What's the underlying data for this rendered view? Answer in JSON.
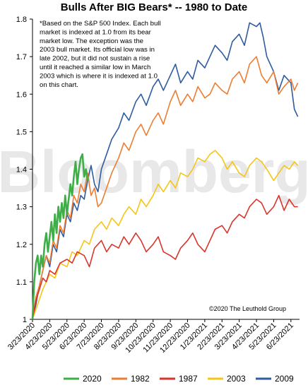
{
  "chart_data": {
    "type": "line",
    "title": "Bulls After BIG Bears* -- 1980 to Date",
    "xlabel": "",
    "ylabel": "",
    "ylim": [
      1,
      1.8
    ],
    "yticks": [
      "1",
      "1.1",
      "1.2",
      "1.3",
      "1.4",
      "1.5",
      "1.6",
      "1.7",
      "1.8"
    ],
    "xticks": [
      "3/23/2020",
      "4/23/2020",
      "5/23/2020",
      "6/23/2020",
      "7/23/2020",
      "8/23/2020",
      "9/23/2020",
      "10/23/2020",
      "11/23/2020",
      "12/23/2020",
      "1/23/2021",
      "2/23/2021",
      "3/23/2021",
      "4/23/2021",
      "5/23/2021",
      "6/23/2021"
    ],
    "xlim": [
      0,
      15.5
    ],
    "grid": false,
    "legend_position": "bottom",
    "watermark": "Bloomberg",
    "note": [
      "*Based on the S&P 500 Index. Each bull",
      "market is indexed at 1.0 from its bear",
      "market low. The exception was the",
      "2003 bull market. Its official low was in",
      "late 2002, but it did not sustain a rise",
      "until it reached a similar low in March",
      "2003 which is where it is indexed at 1.0",
      "on this chart."
    ],
    "credit": "©2020 The Leuthold Group",
    "series": [
      {
        "name": "2020",
        "color": "#3fae49",
        "x": [
          0,
          0.1,
          0.2,
          0.3,
          0.4,
          0.5,
          0.6,
          0.7,
          0.8,
          0.9,
          1.0,
          1.1,
          1.2,
          1.3,
          1.4,
          1.5,
          1.6,
          1.7,
          1.8,
          1.9,
          2.0,
          2.1,
          2.2,
          2.3,
          2.4,
          2.5,
          2.6,
          2.7,
          2.8,
          2.9,
          3.0,
          3.1,
          3.2
        ],
        "values": [
          1.0,
          1.1,
          1.15,
          1.17,
          1.12,
          1.17,
          1.14,
          1.2,
          1.23,
          1.18,
          1.22,
          1.26,
          1.21,
          1.28,
          1.23,
          1.3,
          1.26,
          1.31,
          1.27,
          1.33,
          1.28,
          1.32,
          1.36,
          1.33,
          1.38,
          1.42,
          1.36,
          1.4,
          1.43,
          1.44,
          1.38,
          1.4,
          1.37
        ]
      },
      {
        "name": "1982",
        "color": "#ed7d31",
        "x": [
          0,
          0.2,
          0.4,
          0.6,
          0.8,
          1.0,
          1.2,
          1.4,
          1.6,
          1.8,
          2.0,
          2.2,
          2.4,
          2.6,
          2.8,
          3.0,
          3.2,
          3.4,
          3.6,
          3.8,
          4.0,
          4.3,
          4.6,
          5.0,
          5.3,
          5.6,
          6.0,
          6.3,
          6.6,
          7.0,
          7.3,
          7.6,
          8.0,
          8.3,
          8.6,
          9.0,
          9.3,
          9.6,
          10.0,
          10.3,
          10.6,
          11.0,
          11.3,
          11.6,
          12.0,
          12.3,
          12.6,
          13.0,
          13.3,
          13.6,
          14.0,
          14.3,
          14.6,
          15.0,
          15.2,
          15.4
        ],
        "values": [
          1.0,
          1.06,
          1.09,
          1.13,
          1.17,
          1.15,
          1.21,
          1.19,
          1.25,
          1.23,
          1.29,
          1.27,
          1.33,
          1.31,
          1.36,
          1.34,
          1.39,
          1.33,
          1.35,
          1.3,
          1.31,
          1.35,
          1.39,
          1.43,
          1.47,
          1.45,
          1.5,
          1.52,
          1.49,
          1.53,
          1.55,
          1.52,
          1.58,
          1.61,
          1.57,
          1.6,
          1.58,
          1.62,
          1.59,
          1.6,
          1.63,
          1.61,
          1.6,
          1.64,
          1.66,
          1.63,
          1.68,
          1.7,
          1.65,
          1.63,
          1.66,
          1.6,
          1.62,
          1.64,
          1.61,
          1.63
        ]
      },
      {
        "name": "1987",
        "color": "#d9342b",
        "x": [
          0,
          0.2,
          0.4,
          0.6,
          0.8,
          1.0,
          1.3,
          1.6,
          2.0,
          2.3,
          2.6,
          3.0,
          3.3,
          3.6,
          4.0,
          4.3,
          4.6,
          5.0,
          5.3,
          5.6,
          6.0,
          6.3,
          6.6,
          7.0,
          7.3,
          7.6,
          8.0,
          8.3,
          8.6,
          9.0,
          9.3,
          9.6,
          10.0,
          10.3,
          10.6,
          11.0,
          11.3,
          11.6,
          12.0,
          12.3,
          12.6,
          13.0,
          13.3,
          13.6,
          14.0,
          14.3,
          14.6,
          14.9,
          15.2,
          15.4
        ],
        "values": [
          1.0,
          1.05,
          1.08,
          1.11,
          1.1,
          1.13,
          1.12,
          1.15,
          1.16,
          1.15,
          1.18,
          1.17,
          1.14,
          1.19,
          1.21,
          1.18,
          1.2,
          1.19,
          1.22,
          1.2,
          1.23,
          1.21,
          1.18,
          1.2,
          1.22,
          1.18,
          1.17,
          1.16,
          1.19,
          1.21,
          1.23,
          1.2,
          1.18,
          1.21,
          1.24,
          1.25,
          1.23,
          1.26,
          1.28,
          1.27,
          1.3,
          1.32,
          1.31,
          1.28,
          1.3,
          1.33,
          1.29,
          1.32,
          1.3,
          1.3
        ]
      },
      {
        "name": "2003",
        "color": "#f5c518",
        "x": [
          0,
          0.3,
          0.6,
          1.0,
          1.3,
          1.6,
          2.0,
          2.3,
          2.6,
          3.0,
          3.3,
          3.6,
          4.0,
          4.3,
          4.6,
          5.0,
          5.3,
          5.6,
          6.0,
          6.3,
          6.6,
          7.0,
          7.3,
          7.6,
          8.0,
          8.3,
          8.6,
          9.0,
          9.3,
          9.6,
          10.0,
          10.3,
          10.6,
          11.0,
          11.3,
          11.6,
          12.0,
          12.3,
          12.6,
          13.0,
          13.3,
          13.6,
          14.0,
          14.3,
          14.6,
          14.9,
          15.2,
          15.4
        ],
        "values": [
          1.0,
          1.04,
          1.08,
          1.12,
          1.11,
          1.15,
          1.14,
          1.18,
          1.17,
          1.21,
          1.2,
          1.24,
          1.26,
          1.24,
          1.27,
          1.25,
          1.28,
          1.3,
          1.28,
          1.32,
          1.3,
          1.33,
          1.36,
          1.34,
          1.37,
          1.35,
          1.39,
          1.38,
          1.4,
          1.43,
          1.42,
          1.44,
          1.45,
          1.43,
          1.4,
          1.42,
          1.39,
          1.38,
          1.41,
          1.43,
          1.42,
          1.4,
          1.37,
          1.39,
          1.41,
          1.4,
          1.42,
          1.41
        ]
      },
      {
        "name": "2009",
        "color": "#2e5c9e",
        "x": [
          0,
          0.2,
          0.4,
          0.6,
          0.8,
          1.0,
          1.2,
          1.4,
          1.6,
          1.8,
          2.0,
          2.2,
          2.4,
          2.6,
          2.8,
          3.0,
          3.2,
          3.4,
          3.6,
          3.8,
          4.0,
          4.3,
          4.6,
          5.0,
          5.3,
          5.6,
          6.0,
          6.3,
          6.6,
          7.0,
          7.3,
          7.6,
          8.0,
          8.3,
          8.6,
          9.0,
          9.3,
          9.6,
          10.0,
          10.3,
          10.6,
          11.0,
          11.3,
          11.6,
          12.0,
          12.3,
          12.6,
          13.0,
          13.2,
          13.4,
          13.6,
          14.0,
          14.3,
          14.6,
          15.0,
          15.2,
          15.4
        ],
        "values": [
          1.0,
          1.04,
          1.09,
          1.13,
          1.17,
          1.14,
          1.2,
          1.18,
          1.24,
          1.22,
          1.28,
          1.26,
          1.31,
          1.29,
          1.33,
          1.32,
          1.37,
          1.41,
          1.36,
          1.34,
          1.4,
          1.44,
          1.48,
          1.51,
          1.55,
          1.53,
          1.58,
          1.6,
          1.57,
          1.62,
          1.64,
          1.61,
          1.65,
          1.68,
          1.63,
          1.66,
          1.64,
          1.69,
          1.67,
          1.7,
          1.73,
          1.71,
          1.69,
          1.74,
          1.76,
          1.73,
          1.79,
          1.78,
          1.79,
          1.75,
          1.7,
          1.66,
          1.61,
          1.65,
          1.63,
          1.56,
          1.54
        ]
      }
    ]
  }
}
